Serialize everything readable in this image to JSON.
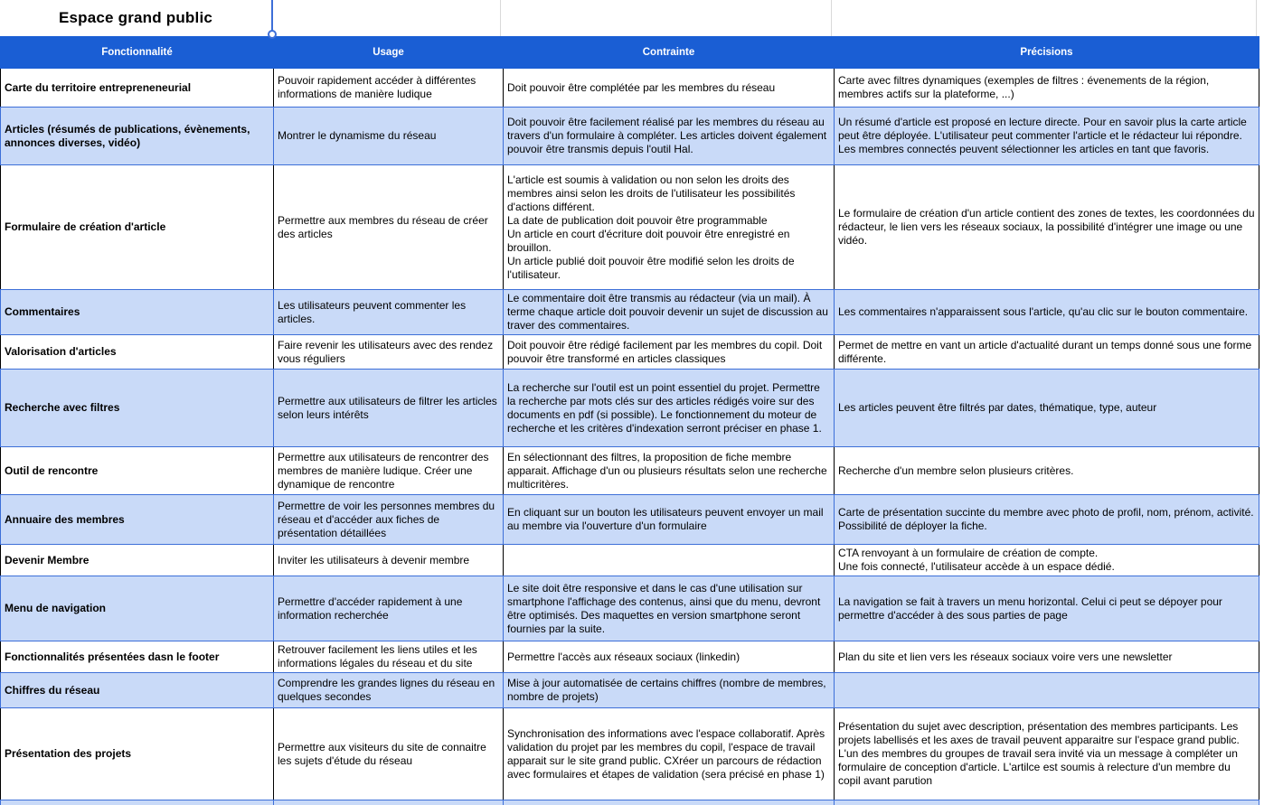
{
  "title": "Espace grand public",
  "colors": {
    "header_bg": "#1a5ed4",
    "band_bg": "#c9daf8",
    "border_blue": "#3d6fd8"
  },
  "table": {
    "columns": [
      "Fonctionnalité",
      "Usage",
      "Contrainte",
      "Précisions"
    ],
    "rows": [
      {
        "feature": "Carte du territoire entrepreneneurial",
        "usage": "Pouvoir rapidement accéder à différentes informations de manière ludique",
        "constraint": "Doit pouvoir être complétée par les membres du réseau",
        "precision": "Carte avec filtres dynamiques (exemples de filtres : évenements de la région, membres actifs sur la plateforme, ...)"
      },
      {
        "feature": "Articles (résumés de publications, évènements, annonces diverses, vidéo)",
        "usage": "Montrer le dynamisme du réseau",
        "constraint": "Doit pouvoir être facilement réalisé par les membres du réseau au travers d'un formulaire à compléter. Les articles doivent également pouvoir être transmis depuis l'outil Hal.",
        "precision": "Un résumé d'article est proposé en lecture directe. Pour en savoir plus la carte article peut être déployée. L'utilisateur peut commenter l'article et le rédacteur lui répondre. Les membres connectés peuvent sélectionner les articles en tant que favoris."
      },
      {
        "feature": "Formulaire de création d'article",
        "usage": "Permettre aux membres du réseau de créer des articles",
        "constraint": "L'article est soumis à validation ou non selon les droits des membres ainsi selon les droits de l'utilisateur les possibilités d'actions différent.\nLa date de publication doit pouvoir être programmable\nUn article en court d'écriture doit pouvoir être enregistré en brouillon.\nUn article publié doit pouvoir être modifié selon les droits de l'utilisateur.",
        "precision": "Le formulaire de création d'un article contient des zones de textes, les coordonnées du rédacteur, le lien vers les réseaux sociaux, la possibilité d'intégrer une image ou une vidéo."
      },
      {
        "feature": "Commentaires",
        "usage": "Les utilisateurs peuvent commenter les articles.",
        "constraint": "Le commentaire doit être transmis au rédacteur (via un mail). À terme chaque article doit pouvoir devenir un sujet de discussion au traver des commentaires.",
        "precision": "Les commentaires n'apparaissent sous l'article, qu'au clic sur le bouton commentaire."
      },
      {
        "feature": "Valorisation d'articles",
        "usage": "Faire revenir les utilisateurs avec des rendez vous réguliers",
        "constraint": "Doit pouvoir être rédigé facilement par les membres du copil. Doit pouvoir être transformé en articles classiques",
        "precision": "Permet de mettre en vant un article d'actualité durant un temps donné sous une forme différente."
      },
      {
        "feature": "Recherche avec filtres",
        "usage": "Permettre aux utilisateurs de filtrer les articles selon leurs intérêts",
        "constraint": "La recherche sur l'outil est un point essentiel du projet. Permettre la recherche par mots clés sur des articles rédigés voire sur des documents en pdf (si possible). Le fonctionnement du moteur de recherche et les critères d'indexation serront préciser en phase 1.",
        "precision": "Les articles peuvent être filtrés par dates, thématique, type, auteur"
      },
      {
        "feature": "Outil de rencontre",
        "usage": "Permettre aux utilisateurs de rencontrer des membres de manière ludique. Créer une dynamique de rencontre",
        "constraint": "En sélectionnant des filtres, la proposition de fiche membre apparait. Affichage d'un ou plusieurs résultats selon une recherche multicritères.",
        "precision": "Recherche d'un membre selon plusieurs critères."
      },
      {
        "feature": "Annuaire des membres",
        "usage": "Permettre de voir les personnes membres du réseau et d'accéder aux fiches de présentation détaillées",
        "constraint": "En cliquant sur un bouton les utilisateurs peuvent envoyer un mail au membre via l'ouverture d'un formulaire",
        "precision": "Carte de présentation succinte du membre avec photo de profil, nom, prénom, activité. Possibilité de déployer la fiche."
      },
      {
        "feature": "Devenir Membre",
        "usage": "Inviter les utilisateurs à devenir membre",
        "constraint": "",
        "precision": "CTA renvoyant à un formulaire de création de compte.\nUne fois connecté, l'utilisateur accède à un espace dédié."
      },
      {
        "feature": "Menu de navigation",
        "usage": "Permettre d'accéder rapidement à une information recherchée",
        "constraint": "Le site doit être responsive et dans le cas d'une utilisation sur smartphone l'affichage des contenus, ainsi que du menu, devront être optimisés. Des maquettes en version smartphone seront fournies par la suite.",
        "precision": "La navigation se fait à travers un menu horizontal. Celui ci peut se dépoyer pour permettre d'accéder à des sous parties de page"
      },
      {
        "feature": "Fonctionnalités présentées dasn le footer",
        "usage": "Retrouver facilement les liens utiles et les informations légales du réseau et du site",
        "constraint": "Permettre l'accès aux réseaux sociaux (linkedin)",
        "precision": "Plan du site et lien vers les réseaux sociaux voire vers une newsletter"
      },
      {
        "feature": "Chiffres du réseau",
        "usage": "Comprendre les grandes lignes du réseau en quelques secondes",
        "constraint": "Mise à jour automatisée de certains chiffres (nombre de membres, nombre de projets)",
        "precision": ""
      },
      {
        "feature": "Présentation des projets",
        "usage": "Permettre aux visiteurs du site de connaitre les sujets d'étude du réseau",
        "constraint": "Synchronisation des informations avec l'espace collaboratif. Après validation du projet par les membres du copil, l'espace de travail apparait sur le site grand public. CXréer un parcours de rédaction avec formulaires et étapes de validation (sera précisé en phase 1)",
        "precision": "Présentation du sujet avec description, présentation des membres participants. Les projets labellisés et les axes de travail peuvent apparaitre sur l'espace grand public. L'un des membres du groupes de travail sera invité via un message à compléter un formulaire de conception d'article. L'artilce est soumis à relecture d'un membre du copil avant parution"
      }
    ]
  }
}
